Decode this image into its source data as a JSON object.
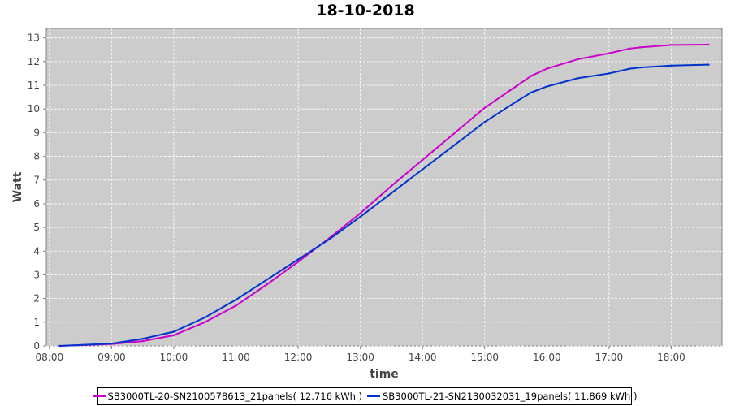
{
  "chart_data": {
    "type": "line",
    "title": "18-10-2018",
    "xlabel": "time",
    "ylabel": "Watt",
    "xlim": [
      "07:57",
      "18:49"
    ],
    "ylim": [
      0,
      13.4
    ],
    "x_ticks": [
      "08:00",
      "09:00",
      "10:00",
      "11:00",
      "12:00",
      "13:00",
      "14:00",
      "15:00",
      "16:00",
      "17:00",
      "18:00"
    ],
    "y_ticks": [
      0,
      1,
      2,
      3,
      4,
      5,
      6,
      7,
      8,
      9,
      10,
      11,
      12,
      13
    ],
    "grid": true,
    "legend_position": "bottom",
    "background": "#cccccc",
    "x": [
      "08:10",
      "09:00",
      "09:30",
      "10:00",
      "10:30",
      "11:00",
      "11:30",
      "12:00",
      "12:30",
      "13:00",
      "13:30",
      "14:00",
      "14:30",
      "15:00",
      "15:30",
      "15:45",
      "16:00",
      "16:30",
      "17:00",
      "17:20",
      "17:30",
      "18:00",
      "18:36"
    ],
    "series": [
      {
        "name": "SB3000TL-20-SN2100578613_21panels( 12.716 kWh )",
        "color": "#cc00cc",
        "values": [
          0,
          0.08,
          0.2,
          0.45,
          1.0,
          1.7,
          2.6,
          3.55,
          4.55,
          5.6,
          6.75,
          7.85,
          8.95,
          10.05,
          10.95,
          11.4,
          11.7,
          12.1,
          12.35,
          12.55,
          12.6,
          12.7,
          12.716
        ]
      },
      {
        "name": "SB3000TL-21-SN2130032031_19panels( 11.869 kWh )",
        "color": "#0033cc",
        "values": [
          0,
          0.1,
          0.3,
          0.6,
          1.2,
          1.95,
          2.8,
          3.65,
          4.5,
          5.45,
          6.45,
          7.45,
          8.45,
          9.45,
          10.3,
          10.7,
          10.95,
          11.3,
          11.5,
          11.7,
          11.75,
          11.83,
          11.869
        ]
      }
    ]
  }
}
